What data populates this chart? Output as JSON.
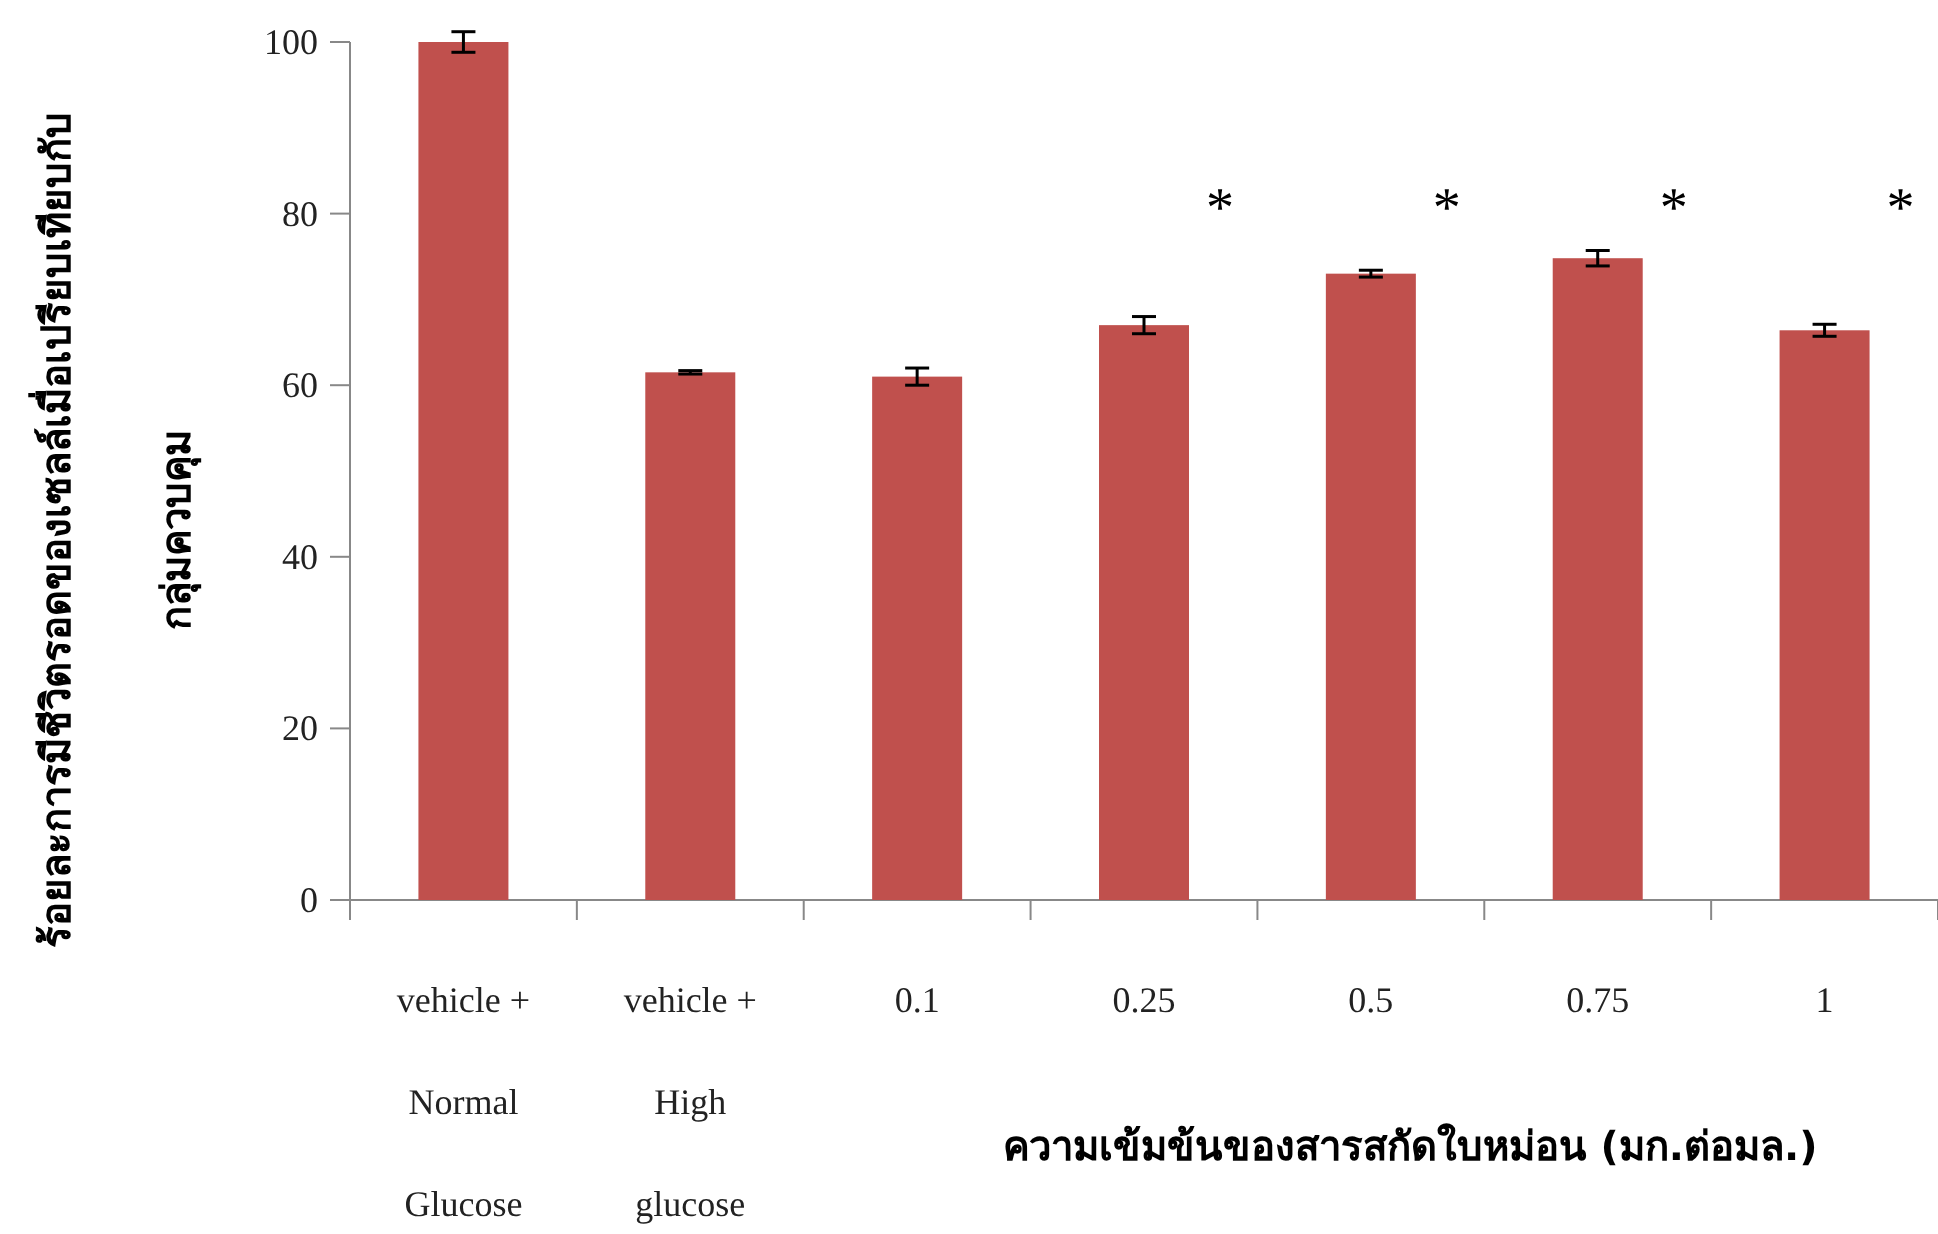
{
  "chart_data": {
    "type": "bar",
    "categories": [
      "vehicle +\nNormal\nGlucose",
      "vehicle +\nHigh\nglucose",
      "0.1",
      "0.25",
      "0.5",
      "0.75",
      "1"
    ],
    "series": [
      {
        "color": "#c0504d",
        "values": [
          100,
          61.5,
          61,
          67,
          73,
          74.8,
          66.4
        ],
        "errors": [
          1.2,
          0.2,
          1,
          1,
          0.4,
          0.9,
          0.7
        ]
      }
    ],
    "ylim": [
      0,
      100
    ],
    "yticks": [
      0,
      20,
      40,
      60,
      80,
      100
    ],
    "xlabel": "ความเข้มข้นของสารสกัดใบหม่อน (มก.ต่อมล.)",
    "ylabel": "ร้อยละการมีชีวิตรอดของเซลล์เมื่อเปรียบเทียบกับ\nกลุ่มควบคุม",
    "annotations": [
      "*",
      "*",
      "*",
      "*"
    ]
  }
}
